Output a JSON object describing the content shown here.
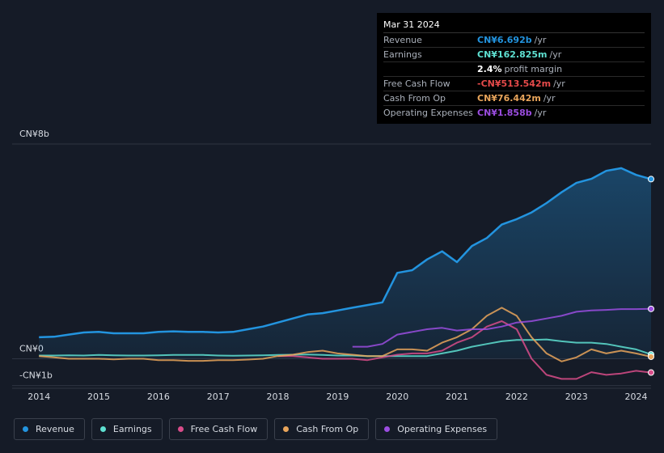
{
  "chart_data": {
    "type": "line",
    "x": [
      2014,
      2014.25,
      2014.5,
      2014.75,
      2015,
      2015.25,
      2015.5,
      2015.75,
      2016,
      2016.25,
      2016.5,
      2016.75,
      2017,
      2017.25,
      2017.5,
      2017.75,
      2018,
      2018.25,
      2018.5,
      2018.75,
      2019,
      2019.25,
      2019.5,
      2019.75,
      2020,
      2020.25,
      2020.5,
      2020.75,
      2021,
      2021.25,
      2021.5,
      2021.75,
      2022,
      2022.25,
      2022.5,
      2022.75,
      2023,
      2023.25,
      2023.5,
      2023.75,
      2024,
      2024.25
    ],
    "xlim": [
      2013.55,
      2024.25
    ],
    "xticks": [
      2014,
      2015,
      2016,
      2017,
      2018,
      2019,
      2020,
      2021,
      2022,
      2023,
      2024
    ],
    "ylim": [
      -1.1,
      8
    ],
    "yticks": [
      {
        "value": 8,
        "label": "CN¥8b"
      },
      {
        "value": 0,
        "label": "CN¥0"
      },
      {
        "value": -1,
        "label": "-CN¥1b"
      }
    ],
    "grid": true,
    "series": [
      {
        "name": "Revenue",
        "color": "#2394df",
        "values": [
          0.8,
          0.82,
          0.9,
          0.98,
          1.0,
          0.95,
          0.95,
          0.95,
          1.0,
          1.02,
          1.0,
          1.0,
          0.98,
          1.0,
          1.1,
          1.2,
          1.35,
          1.5,
          1.65,
          1.7,
          1.8,
          1.9,
          2.0,
          2.1,
          3.2,
          3.3,
          3.7,
          4.0,
          3.6,
          4.2,
          4.5,
          5.0,
          5.2,
          5.45,
          5.8,
          6.2,
          6.55,
          6.7,
          7.0,
          7.1,
          6.85,
          6.692
        ]
      },
      {
        "name": "Earnings",
        "color": "#5ee0d1",
        "values": [
          0.12,
          0.12,
          0.13,
          0.12,
          0.14,
          0.13,
          0.12,
          0.12,
          0.13,
          0.14,
          0.14,
          0.14,
          0.12,
          0.11,
          0.12,
          0.13,
          0.14,
          0.15,
          0.16,
          0.14,
          0.12,
          0.12,
          0.1,
          0.1,
          0.1,
          0.1,
          0.1,
          0.2,
          0.3,
          0.45,
          0.55,
          0.65,
          0.7,
          0.7,
          0.72,
          0.65,
          0.6,
          0.6,
          0.55,
          0.45,
          0.35,
          0.163
        ]
      },
      {
        "name": "Free Cash Flow",
        "color": "#d94c8a",
        "values": [
          null,
          null,
          null,
          null,
          null,
          null,
          null,
          null,
          null,
          null,
          null,
          null,
          null,
          null,
          null,
          null,
          0.1,
          0.1,
          0.05,
          0.0,
          0.0,
          0.0,
          -0.05,
          0.05,
          0.15,
          0.2,
          0.2,
          0.3,
          0.6,
          0.8,
          1.2,
          1.4,
          1.1,
          0.0,
          -0.6,
          -0.75,
          -0.75,
          -0.5,
          -0.6,
          -0.55,
          -0.45,
          -0.514
        ]
      },
      {
        "name": "Cash From Op",
        "color": "#e9a55b",
        "values": [
          0.1,
          0.05,
          0.0,
          0.0,
          0.0,
          -0.02,
          0.0,
          0.0,
          -0.05,
          -0.05,
          -0.08,
          -0.08,
          -0.05,
          -0.05,
          -0.03,
          0.0,
          0.1,
          0.15,
          0.25,
          0.3,
          0.2,
          0.15,
          0.1,
          0.1,
          0.35,
          0.35,
          0.3,
          0.6,
          0.8,
          1.1,
          1.6,
          1.9,
          1.6,
          0.8,
          0.2,
          -0.1,
          0.05,
          0.35,
          0.2,
          0.3,
          0.2,
          0.076
        ]
      },
      {
        "name": "Operating Expenses",
        "color": "#9b4de0",
        "values": [
          null,
          null,
          null,
          null,
          null,
          null,
          null,
          null,
          null,
          null,
          null,
          null,
          null,
          null,
          null,
          null,
          null,
          null,
          null,
          null,
          null,
          0.45,
          0.45,
          0.55,
          0.9,
          1.0,
          1.1,
          1.15,
          1.05,
          1.1,
          1.1,
          1.2,
          1.35,
          1.4,
          1.5,
          1.6,
          1.75,
          1.8,
          1.82,
          1.85,
          1.85,
          1.858
        ]
      }
    ]
  },
  "tooltip": {
    "date": "Mar 31 2024",
    "unit": "/yr",
    "rows": [
      {
        "label": "Revenue",
        "value": "CN¥6.692b",
        "color": "#2394df"
      },
      {
        "label": "Earnings",
        "value": "CN¥162.825m",
        "color": "#5ee0d1"
      },
      {
        "label": "Free Cash Flow",
        "value": "-CN¥513.542m",
        "color": "#e64a4a"
      },
      {
        "label": "Cash From Op",
        "value": "CN¥76.442m",
        "color": "#e9a55b"
      },
      {
        "label": "Operating Expenses",
        "value": "CN¥1.858b",
        "color": "#9b4de0"
      }
    ],
    "margin": {
      "value": "2.4%",
      "label": "profit margin"
    }
  }
}
